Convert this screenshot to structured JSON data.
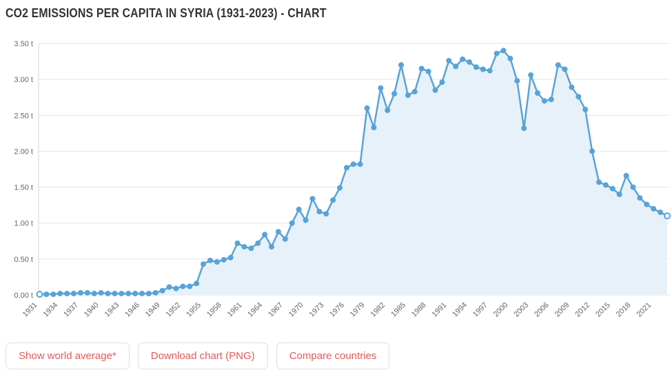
{
  "page": {
    "title": "CO2 EMISSIONS PER CAPITA IN SYRIA (1931-2023) - CHART"
  },
  "chart_data": {
    "type": "area",
    "title": "CO2 emissions per capita in Syria (1931-2023)",
    "unit": "t",
    "x_start_year": 1931,
    "x_end_year": 2023,
    "ylim": [
      0,
      3.5
    ],
    "y_tick_interval": 0.5,
    "grid": true,
    "legend": false,
    "y_tick_labels": [
      "0.00 t",
      "0.50 t",
      "1.00 t",
      "1.50 t",
      "2.00 t",
      "2.50 t",
      "3.00 t",
      "3.50 t"
    ],
    "x_tick_labels": [
      1931,
      1934,
      1937,
      1940,
      1943,
      1946,
      1949,
      1952,
      1955,
      1958,
      1961,
      1964,
      1967,
      1970,
      1973,
      1976,
      1979,
      1982,
      1985,
      1988,
      1991,
      1994,
      1997,
      2000,
      2003,
      2006,
      2009,
      2012,
      2015,
      2018,
      2021
    ],
    "values": [
      0.01,
      0.01,
      0.01,
      0.02,
      0.02,
      0.02,
      0.03,
      0.03,
      0.02,
      0.03,
      0.02,
      0.02,
      0.02,
      0.02,
      0.02,
      0.02,
      0.02,
      0.03,
      0.06,
      0.11,
      0.09,
      0.12,
      0.12,
      0.16,
      0.43,
      0.48,
      0.46,
      0.49,
      0.52,
      0.72,
      0.67,
      0.65,
      0.72,
      0.84,
      0.67,
      0.88,
      0.78,
      1.0,
      1.19,
      1.04,
      1.34,
      1.16,
      1.13,
      1.32,
      1.49,
      1.77,
      1.82,
      1.82,
      2.6,
      2.33,
      2.88,
      2.57,
      2.8,
      3.2,
      2.78,
      2.83,
      3.15,
      3.11,
      2.85,
      2.96,
      3.26,
      3.18,
      3.28,
      3.24,
      3.17,
      3.14,
      3.12,
      3.36,
      3.4,
      3.29,
      2.98,
      2.32,
      3.06,
      2.81,
      2.7,
      2.72,
      3.2,
      3.14,
      2.89,
      2.76,
      2.58,
      2.0,
      1.57,
      1.53,
      1.48,
      1.4,
      1.66,
      1.5,
      1.35,
      1.26,
      1.2,
      1.15,
      1.1
    ],
    "colors": {
      "line": "#58a3d7",
      "fill": "#e7f1f9",
      "grid": "#e6e6e6",
      "axis_line": "#d6d6d6",
      "axis_text": "#666666"
    }
  },
  "buttons": {
    "show_world_average": "Show world average*",
    "download_chart": "Download chart (PNG)",
    "compare_countries": "Compare countries"
  }
}
